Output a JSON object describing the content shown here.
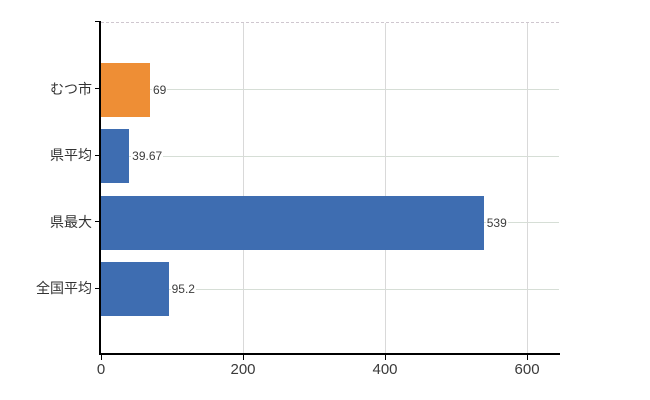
{
  "chart_data": {
    "type": "bar",
    "orientation": "horizontal",
    "title": "",
    "xlabel": "",
    "ylabel": "",
    "categories": [
      "むつ市",
      "県平均",
      "県最大",
      "全国平均"
    ],
    "values": [
      69,
      39.67,
      539,
      95.2
    ],
    "value_labels": [
      "69",
      "39.67",
      "539",
      "95.2"
    ],
    "bar_colors": [
      "#ee8e35",
      "#3e6db1",
      "#3e6db1",
      "#3e6db1"
    ],
    "x_ticks": [
      0,
      200,
      400,
      600
    ],
    "x_tick_labels": [
      "0",
      "200",
      "400",
      "600"
    ],
    "xlim": [
      0,
      645
    ],
    "grid": true,
    "legend": false,
    "colors": {
      "highlight_bar": "#ee8e35",
      "default_bar": "#3e6db1",
      "axis": "#000000",
      "vertical_grid": "#d9d9d9",
      "horizontal_grid": "#d6ded6",
      "plot_top_border_dashed": "#cfc7cf",
      "tick_text": "#3a3a3a",
      "background": "#ffffff"
    }
  }
}
